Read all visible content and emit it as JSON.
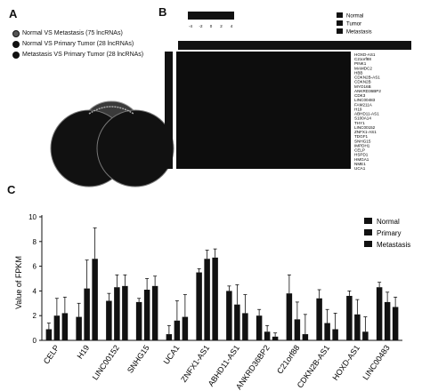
{
  "panels": {
    "a": "A",
    "b": "B",
    "c": "C"
  },
  "venn": {
    "type": "venn",
    "sets": [
      {
        "label": "Normal VS Metastasis (75 lncRNAs)"
      },
      {
        "label": "Normal VS Primary Tumor (28 lncRNAs)"
      },
      {
        "label": "Metastasis VS Primary Tumor (28 lncRNAs)"
      }
    ]
  },
  "heatmap": {
    "type": "heatmap",
    "colorbar_ticks": [
      "-4",
      "-2",
      "0",
      "2",
      "4"
    ],
    "legend": [
      "Normal",
      "Tumor",
      "Metastasis"
    ],
    "genes": [
      "HOXD-AS1",
      "C21orf88",
      "PINK1",
      "MAMDC2",
      "HBB",
      "CDKN2B-AS1",
      "CDKN2B",
      "MYO16B",
      "ANKRD36BP2",
      "CDK3",
      "LINC00483",
      "FAM211A",
      "H19",
      "ABHD11-AS1",
      "S100A14",
      "THY1",
      "LINC00152",
      "ZNFX1-AS1",
      "TDGF1",
      "SNHG15",
      "IMPDH1",
      "CELP",
      "HSPD1",
      "HMGA1",
      "NME1",
      "UCA1"
    ]
  },
  "chart_data": {
    "type": "bar",
    "ylabel": "Value of FPKM",
    "ylim": [
      0,
      10
    ],
    "yticks": [
      0,
      2,
      4,
      6,
      8,
      10
    ],
    "categories": [
      "CELP",
      "H19",
      "LINC00152",
      "SNHG15",
      "UCA1",
      "ZNFX1-AS1",
      "ABHD11-AS1",
      "ANKRD36BP2",
      "C21orf88",
      "CDKN2B-AS1",
      "HOXD-AS1",
      "LINC00483"
    ],
    "series": [
      {
        "name": "Normal",
        "values": [
          0.9,
          1.9,
          3.2,
          3.1,
          0.5,
          5.5,
          4.0,
          2.0,
          3.8,
          3.4,
          3.6,
          4.3
        ],
        "errors": [
          0.5,
          1.1,
          0.6,
          0.3,
          0.7,
          0.3,
          0.4,
          0.5,
          1.5,
          0.7,
          0.4,
          0.4
        ]
      },
      {
        "name": "Primary",
        "values": [
          2.0,
          4.2,
          4.3,
          4.1,
          1.6,
          6.6,
          2.9,
          0.7,
          1.7,
          1.4,
          2.1,
          3.1
        ],
        "errors": [
          1.4,
          2.3,
          1.0,
          0.9,
          1.6,
          0.7,
          1.6,
          0.5,
          1.4,
          1.1,
          1.2,
          0.8
        ]
      },
      {
        "name": "Metastasis",
        "values": [
          2.2,
          6.6,
          4.4,
          4.4,
          1.9,
          6.7,
          2.2,
          0.3,
          0.5,
          0.9,
          0.7,
          2.7
        ],
        "errors": [
          1.3,
          2.5,
          0.9,
          0.8,
          1.8,
          0.7,
          1.5,
          0.3,
          1.6,
          1.3,
          1.2,
          0.8
        ]
      }
    ]
  }
}
